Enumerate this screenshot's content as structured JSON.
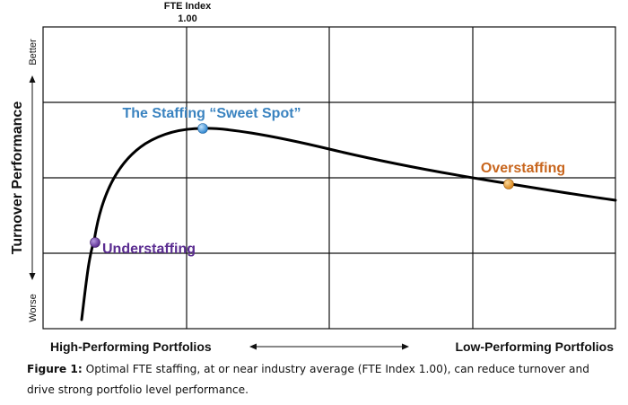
{
  "chart_data": {
    "type": "line",
    "reference_line": {
      "label": "FTE Index",
      "value": "1.00"
    },
    "y_axis": {
      "label": "Turnover Performance",
      "top": "Better",
      "bottom": "Worse"
    },
    "x_axis": {
      "left": "High-Performing Portfolios",
      "right": "Low-Performing Portfolios"
    },
    "grid": true,
    "curve_color": "#000000",
    "points": [
      {
        "label": "Understaffing",
        "color": "#5b2d91",
        "label_color": "#5b2d91"
      },
      {
        "label": "The Staffing “Sweet Spot”",
        "color": "#3b8fd4",
        "label_color": "#3a83c0"
      },
      {
        "label": "Overstaffing",
        "color": "#e39a2f",
        "label_color": "#c8661e"
      }
    ]
  },
  "caption": {
    "lead": "Figure 1:",
    "text": " Optimal FTE staffing, at or near industry average (FTE Index 1.00), can reduce turnover and drive strong portfolio level performance."
  }
}
